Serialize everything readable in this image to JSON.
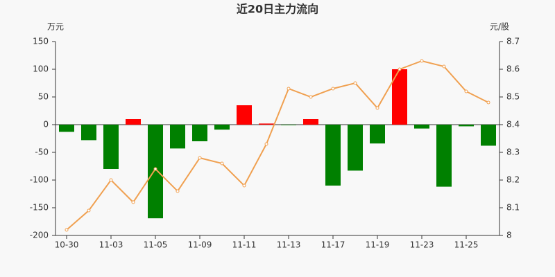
{
  "chart_data": {
    "type": "bar-line",
    "title": "近20日主力流向",
    "y_label": "万元",
    "y2_label": "元/股",
    "categories": [
      "10-30",
      null,
      "11-03",
      null,
      "11-05",
      null,
      "11-09",
      null,
      "11-11",
      null,
      "11-13",
      null,
      "11-17",
      null,
      "11-19",
      null,
      "11-23",
      null,
      "11-25",
      null
    ],
    "series": [
      {
        "type": "bar",
        "positive_color": "#ff0000",
        "negative_color": "#008000",
        "values": [
          -13,
          -28,
          -80,
          10,
          -169,
          -43,
          -30,
          -9,
          35,
          2,
          -1,
          10,
          -110,
          -83,
          -34,
          100,
          -7,
          -112,
          -3,
          -38
        ]
      },
      {
        "type": "line",
        "axis": "y2",
        "color": "#f0a050",
        "values": [
          8.02,
          8.09,
          8.2,
          8.12,
          8.24,
          8.16,
          8.28,
          8.26,
          8.18,
          8.33,
          8.53,
          8.5,
          8.53,
          8.55,
          8.46,
          8.6,
          8.63,
          8.61,
          8.52,
          8.48
        ]
      }
    ],
    "ylim": [
      -200,
      150
    ],
    "yticks": [
      -200,
      -150,
      -100,
      -50,
      0,
      50,
      100,
      150
    ],
    "y2lim": [
      8,
      8.7
    ],
    "y2ticks": [
      8,
      8.1,
      8.2,
      8.3,
      8.4,
      8.5,
      8.6,
      8.7
    ],
    "grid": false
  }
}
